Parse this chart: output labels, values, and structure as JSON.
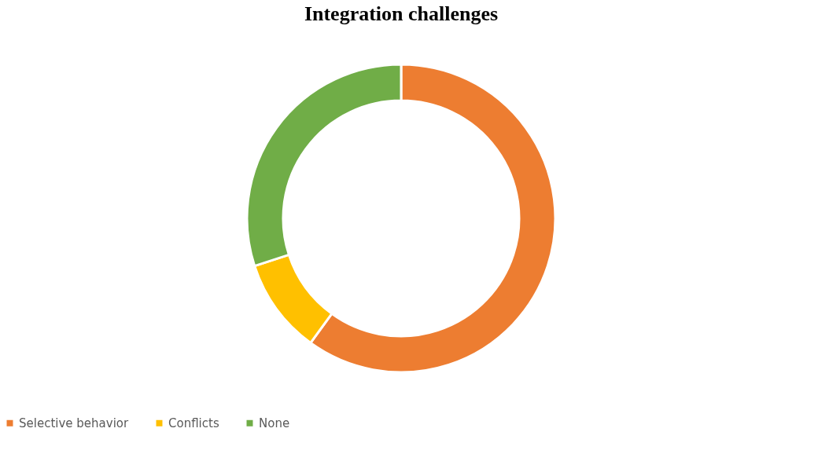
{
  "chart_data": {
    "type": "donut",
    "title": "Integration challenges",
    "categories": [
      "Selective behavior",
      "Conflicts",
      "None"
    ],
    "values": [
      60,
      10,
      30
    ],
    "colors": [
      "#ed7d31",
      "#ffc000",
      "#70ad47"
    ],
    "legend": "bottom"
  }
}
